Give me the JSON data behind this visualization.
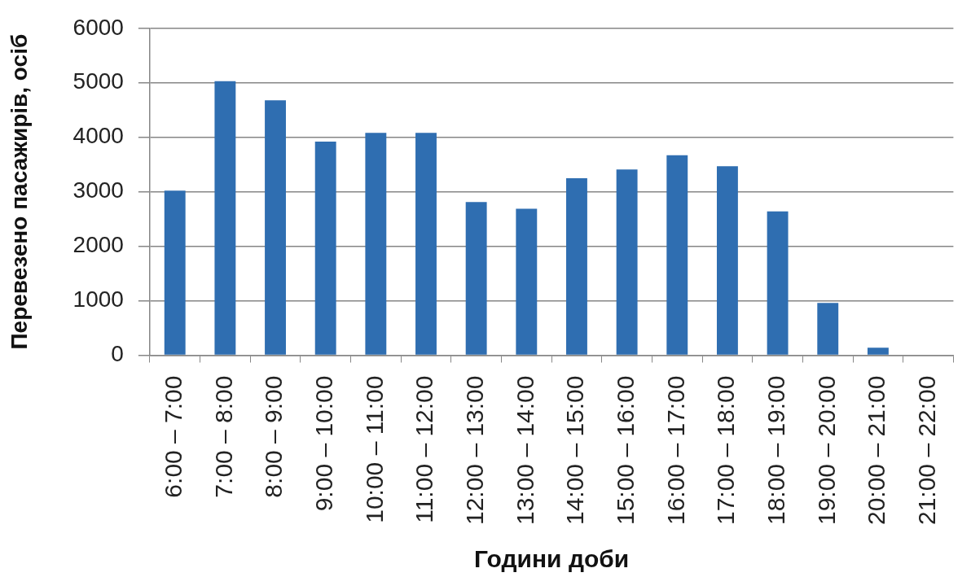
{
  "chart_data": {
    "type": "bar",
    "xlabel": "Години доби",
    "ylabel": "Перевезено пасажирів, осіб",
    "categories": [
      "6:00 – 7:00",
      "7:00 – 8:00",
      "8:00 – 9:00",
      "9:00 – 10:00",
      "10:00 – 11:00",
      "11:00 – 12:00",
      "12:00 – 13:00",
      "13:00 – 14:00",
      "14:00 – 15:00",
      "15:00 – 16:00",
      "16:00 – 17:00",
      "17:00 – 18:00",
      "18:00 – 19:00",
      "19:00 – 20:00",
      "20:00 – 21:00",
      "21:00 – 22:00"
    ],
    "values": [
      3020,
      5030,
      4680,
      3920,
      4080,
      4080,
      2810,
      2690,
      3250,
      3410,
      3670,
      3470,
      2640,
      960,
      140,
      0
    ],
    "color": "#2f6eb1",
    "ylim": [
      0,
      6000
    ],
    "yticks": [
      0,
      1000,
      2000,
      3000,
      4000,
      5000,
      6000
    ],
    "grid": "y"
  }
}
